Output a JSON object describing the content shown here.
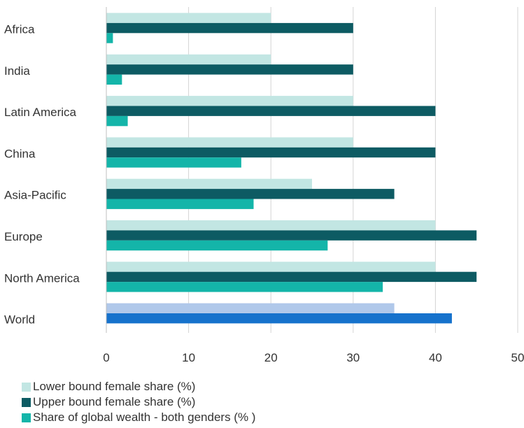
{
  "chart_data": {
    "type": "bar",
    "orientation": "horizontal",
    "categories": [
      "Africa",
      "India",
      "Latin America",
      "China",
      "Asia-Pacific",
      "Europe",
      "North America",
      "World"
    ],
    "series": [
      {
        "name": "Lower bound female share (%)",
        "color": "#c2e6e3",
        "values": [
          20,
          20,
          30,
          30,
          25,
          40,
          40,
          35
        ]
      },
      {
        "name": "Upper bound female share (%)",
        "color": "#0d5b63",
        "values": [
          30,
          30,
          40,
          40,
          35,
          45,
          45,
          42
        ]
      },
      {
        "name": "Share of global wealth - both genders (% )",
        "color": "#14b5a9",
        "values": [
          0.8,
          1.9,
          2.6,
          16.4,
          17.9,
          26.9,
          33.6,
          null
        ]
      }
    ],
    "world_colors": [
      "#b0c8ea",
      "#1672cc"
    ],
    "xlim": [
      0,
      50
    ],
    "xticks": [
      "0",
      "10",
      "20",
      "30",
      "40",
      "50"
    ],
    "grid": true,
    "legend_position": "bottom-left",
    "title": "",
    "xlabel": "",
    "ylabel": ""
  }
}
